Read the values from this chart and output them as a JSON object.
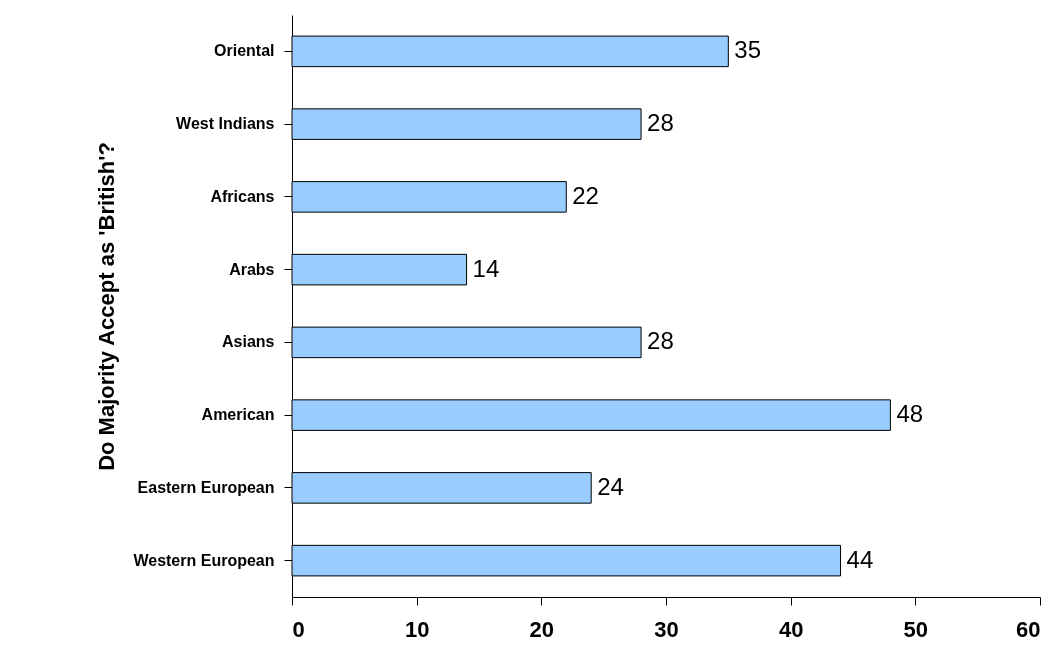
{
  "chart_data": {
    "type": "bar",
    "orientation": "horizontal",
    "ylabel": "Do Majority Accept as 'British'?",
    "categories": [
      "Oriental",
      "West Indians",
      "Africans",
      "Arabs",
      "Asians",
      "American",
      "Eastern European",
      "Western European"
    ],
    "values": [
      35,
      28,
      22,
      14,
      28,
      48,
      24,
      44
    ],
    "color": "#99ccff",
    "xlim": [
      0,
      60
    ],
    "xticks": [
      0,
      10,
      20,
      30,
      40,
      50,
      60
    ],
    "grid": false,
    "data_labels": true
  }
}
